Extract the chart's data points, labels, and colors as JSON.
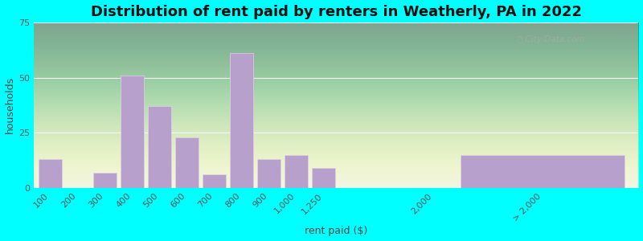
{
  "title": "Distribution of rent paid by renters in Weatherly, PA in 2022",
  "xlabel": "rent paid ($)",
  "ylabel": "households",
  "background_outer": "#00FFFF",
  "bar_color": "#b8a0cc",
  "bar_edgecolor": "#e0d0e8",
  "ylim": [
    0,
    75
  ],
  "yticks": [
    0,
    25,
    50,
    75
  ],
  "categories": [
    "100",
    "200",
    "300",
    "400",
    "500",
    "600",
    "700",
    "800",
    "900",
    "1,000",
    "1,250",
    "2,000",
    "> 2,000"
  ],
  "values": [
    13,
    0,
    7,
    51,
    37,
    23,
    6,
    61,
    13,
    15,
    9,
    0,
    15
  ],
  "positions": [
    0,
    1,
    2,
    3,
    4,
    5,
    6,
    7,
    8,
    9,
    10,
    14,
    18
  ],
  "bar_widths": [
    0.85,
    0.85,
    0.85,
    0.85,
    0.85,
    0.85,
    0.85,
    0.85,
    0.85,
    0.85,
    0.85,
    0.85,
    6.0
  ],
  "xlim": [
    -0.6,
    21.5
  ],
  "title_fontsize": 13,
  "label_fontsize": 9,
  "tick_fontsize": 8
}
